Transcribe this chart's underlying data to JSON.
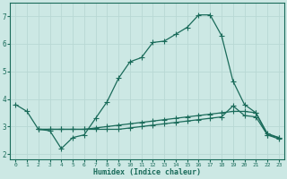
{
  "xlabel": "Humidex (Indice chaleur)",
  "ylabel": "",
  "bg_color": "#cce8e4",
  "grid_color": "#b8d8d4",
  "line_color": "#1a6b5a",
  "xlim": [
    -0.5,
    23.5
  ],
  "ylim": [
    1.8,
    7.5
  ],
  "xticks": [
    0,
    1,
    2,
    3,
    4,
    5,
    6,
    7,
    8,
    9,
    10,
    11,
    12,
    13,
    14,
    15,
    16,
    17,
    18,
    19,
    20,
    21,
    22,
    23
  ],
  "yticks": [
    2,
    3,
    4,
    5,
    6,
    7
  ],
  "line1_x": [
    0,
    1,
    2,
    3,
    4,
    5,
    6,
    7,
    8,
    9,
    10,
    11,
    12,
    13,
    14,
    15,
    16,
    17,
    18,
    19,
    20,
    21,
    22,
    23
  ],
  "line1_y": [
    3.8,
    3.55,
    2.9,
    2.85,
    2.2,
    2.6,
    2.7,
    3.3,
    3.9,
    4.75,
    5.35,
    5.5,
    6.05,
    6.1,
    6.35,
    6.6,
    7.05,
    7.05,
    6.3,
    4.65,
    3.8,
    3.5,
    2.75,
    2.6
  ],
  "line2_x": [
    2,
    3,
    4,
    5,
    6,
    7,
    8,
    9,
    10,
    11,
    12,
    13,
    14,
    15,
    16,
    17,
    18,
    19,
    20,
    21,
    22,
    23
  ],
  "line2_y": [
    2.9,
    2.9,
    2.9,
    2.9,
    2.9,
    2.95,
    3.0,
    3.05,
    3.1,
    3.15,
    3.2,
    3.25,
    3.3,
    3.35,
    3.4,
    3.45,
    3.5,
    3.55,
    3.55,
    3.5,
    2.7,
    2.6
  ],
  "line3_x": [
    2,
    3,
    4,
    5,
    6,
    7,
    8,
    9,
    10,
    11,
    12,
    13,
    14,
    15,
    16,
    17,
    18,
    19,
    20,
    21,
    22,
    23
  ],
  "line3_y": [
    2.9,
    2.9,
    2.9,
    2.9,
    2.9,
    2.9,
    2.9,
    2.9,
    2.95,
    3.0,
    3.05,
    3.1,
    3.15,
    3.2,
    3.25,
    3.3,
    3.35,
    3.75,
    3.4,
    3.35,
    2.7,
    2.55
  ],
  "marker_size": 2,
  "line_width": 0.9
}
